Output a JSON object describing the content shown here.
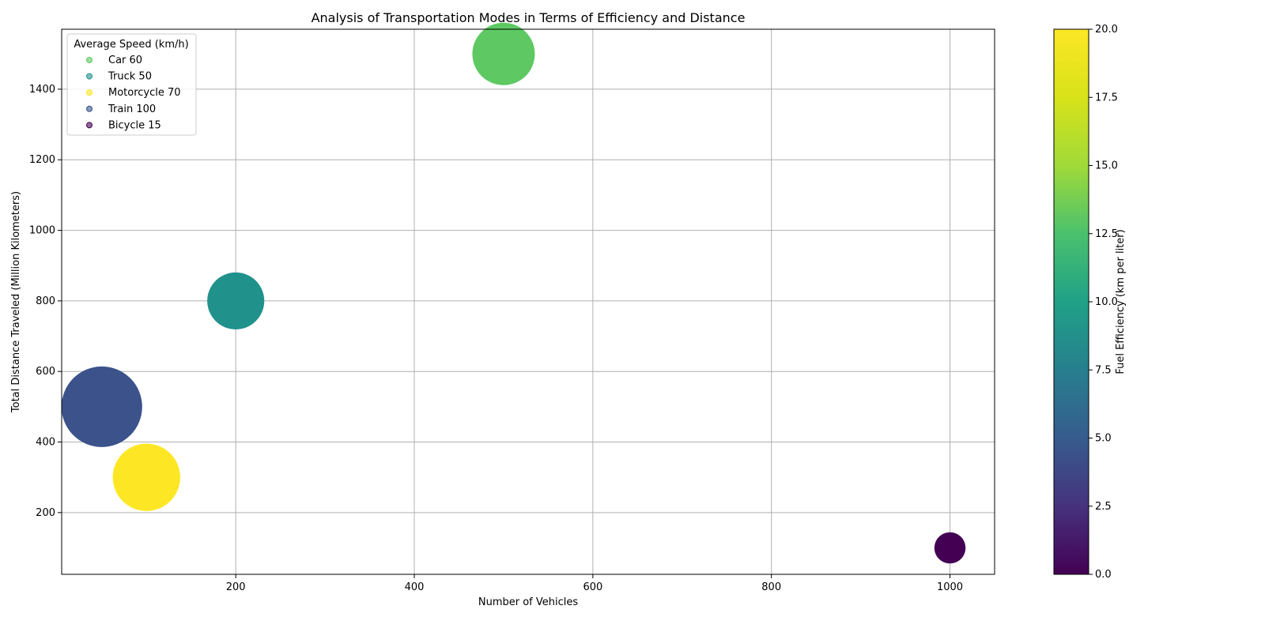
{
  "chart_data": {
    "type": "scatter",
    "title": "Analysis of Transportation Modes in Terms of Efficiency and Distance",
    "xlabel": "Number of Vehicles",
    "ylabel": "Total Distance Traveled (Million Kilometers)",
    "xlim": [
      5,
      1050
    ],
    "ylim": [
      25,
      1570
    ],
    "xticks": [
      200,
      400,
      600,
      800,
      1000
    ],
    "yticks": [
      200,
      400,
      600,
      800,
      1000,
      1200,
      1400
    ],
    "grid": true,
    "legend": {
      "title": "Average Speed (km/h)",
      "placement": "top-left",
      "entries": [
        "Car 60",
        "Truck 50",
        "Motorcycle 70",
        "Train 100",
        "Bicycle 15"
      ]
    },
    "colorbar": {
      "label": "Fuel Efficiency (km per liter)",
      "colormap": "viridis",
      "range": [
        0,
        20
      ],
      "ticks": [
        "0.0",
        "2.5",
        "5.0",
        "7.5",
        "10.0",
        "12.5",
        "15.0",
        "17.5",
        "20.0"
      ]
    },
    "points": [
      {
        "x": 500,
        "y": 1500,
        "speed": 60,
        "efficiency": 15,
        "color": "#5ec962"
      },
      {
        "x": 200,
        "y": 800,
        "speed": 50,
        "efficiency": 10,
        "color": "#21918c"
      },
      {
        "x": 100,
        "y": 300,
        "speed": 70,
        "efficiency": 20,
        "color": "#fde725"
      },
      {
        "x": 50,
        "y": 500,
        "speed": 100,
        "efficiency": 5,
        "color": "#3b528b"
      },
      {
        "x": 1000,
        "y": 100,
        "speed": 15,
        "efficiency": 0,
        "color": "#440154"
      }
    ]
  }
}
